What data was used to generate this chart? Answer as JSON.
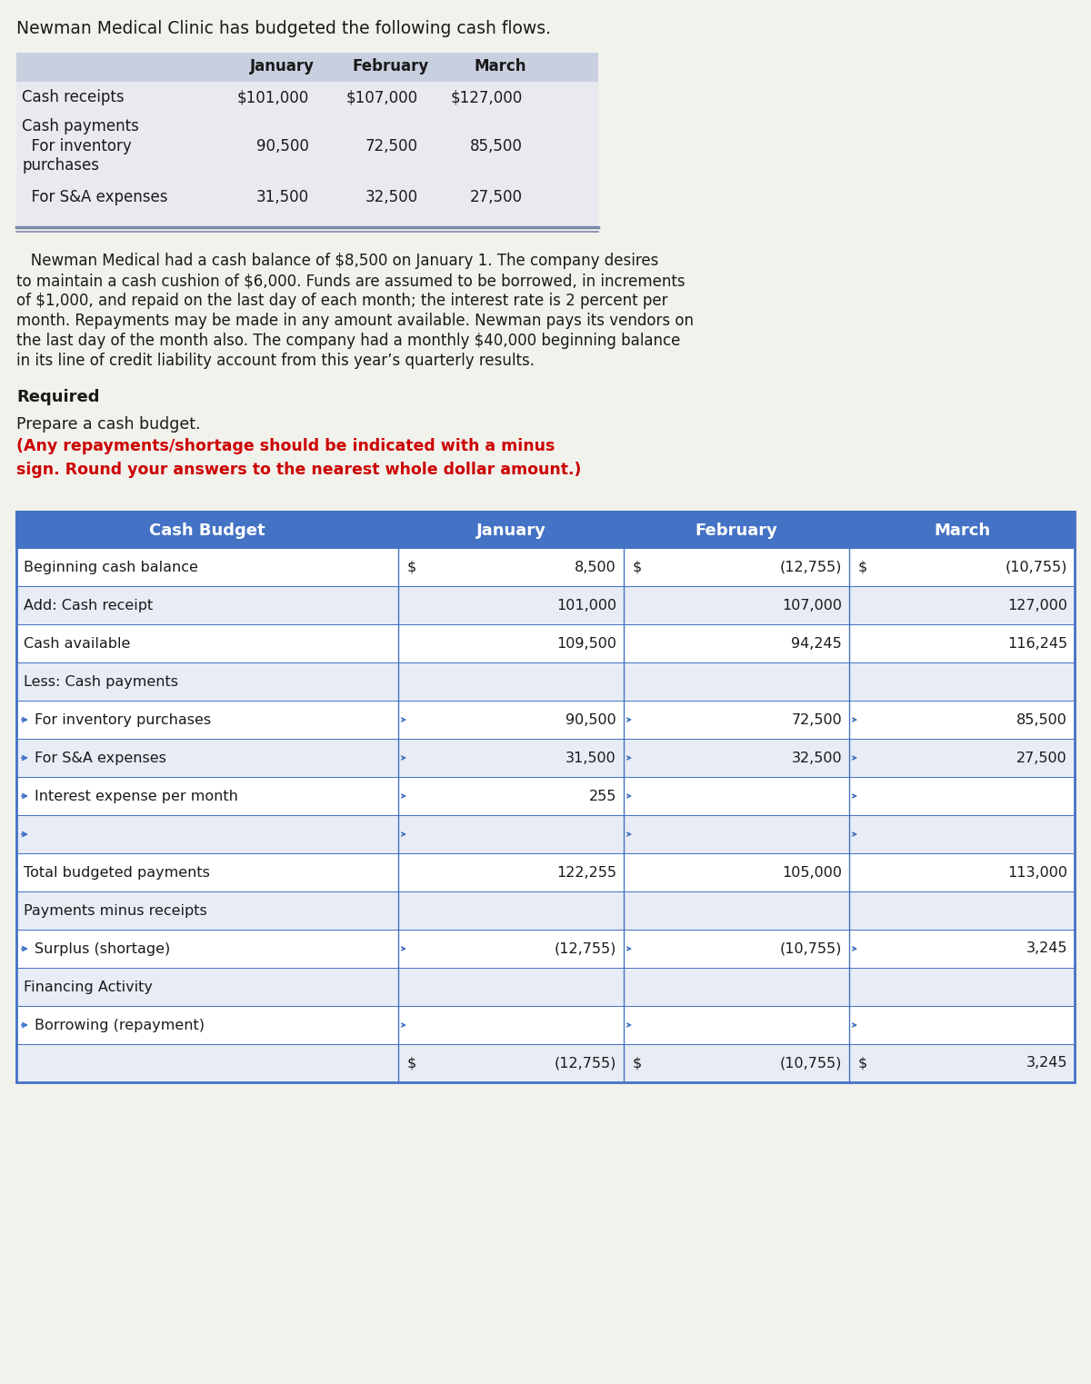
{
  "title_text": "Newman Medical Clinic has budgeted the following cash flows.",
  "body_text": "   Newman Medical had a cash balance of $8,500 on January 1. The company desires\nto maintain a cash cushion of $6,000. Funds are assumed to be borrowed, in increments\nof $1,000, and repaid on the last day of each month; the interest rate is 2 percent per\nmonth. Repayments may be made in any amount available. Newman pays its vendors on\nthe last day of the month also. The company had a monthly $40,000 beginning balance\nin its line of credit liability account from this year’s quarterly results.",
  "required_text": "Required",
  "prepare_normal": "Prepare a cash budget. ",
  "prepare_red_line1": "(Any repayments/shortage should be indicated with a minus",
  "prepare_red_line2": "sign. Round your answers to the nearest whole dollar amount.)",
  "intro_table": {
    "header_bg": "#C8D0E0",
    "body_bg": "#E8EAF0",
    "months": [
      "January",
      "February",
      "March"
    ],
    "rows": [
      {
        "label": "Cash receipts",
        "indent": 0,
        "vals": [
          "$101,000",
          "$107,000",
          "$127,000"
        ]
      },
      {
        "label": "Cash payments",
        "indent": 0,
        "vals": [
          "",
          "",
          ""
        ]
      },
      {
        "label": "  For inventory\npurchases",
        "indent": 1,
        "vals": [
          "90,500",
          "72,500",
          "85,500"
        ]
      },
      {
        "label": "  For S&A expenses",
        "indent": 1,
        "vals": [
          "31,500",
          "32,500",
          "27,500"
        ]
      }
    ]
  },
  "cash_budget": {
    "header_bg": "#4472C4",
    "header_fg": "#FFFFFF",
    "border_color": "#4472C4",
    "alt_row_bg": "#E8ECF5",
    "white_row_bg": "#FFFFFF",
    "headers": [
      "Cash Budget",
      "January",
      "February",
      "March"
    ],
    "rows": [
      {
        "label": "Beginning cash balance",
        "indent": 0,
        "jan": "8,500",
        "feb": "(12,755)",
        "mar": "(10,755)",
        "dollar": true
      },
      {
        "label": "Add: Cash receipt",
        "indent": 0,
        "jan": "101,000",
        "feb": "107,000",
        "mar": "127,000",
        "dollar": false
      },
      {
        "label": "Cash available",
        "indent": 0,
        "jan": "109,500",
        "feb": "94,245",
        "mar": "116,245",
        "dollar": false
      },
      {
        "label": "Less: Cash payments",
        "indent": 0,
        "jan": "",
        "feb": "",
        "mar": "",
        "dollar": false
      },
      {
        "label": "For inventory purchases",
        "indent": 1,
        "jan": "90,500",
        "feb": "72,500",
        "mar": "85,500",
        "dollar": false
      },
      {
        "label": "For S&A expenses",
        "indent": 1,
        "jan": "31,500",
        "feb": "32,500",
        "mar": "27,500",
        "dollar": false
      },
      {
        "label": "Interest expense per month",
        "indent": 1,
        "jan": "255",
        "feb": "",
        "mar": "",
        "dollar": false
      },
      {
        "label": "",
        "indent": 1,
        "jan": "",
        "feb": "",
        "mar": "",
        "dollar": false
      },
      {
        "label": "Total budgeted payments",
        "indent": 0,
        "jan": "122,255",
        "feb": "105,000",
        "mar": "113,000",
        "dollar": false
      },
      {
        "label": "Payments minus receipts",
        "indent": 0,
        "jan": "",
        "feb": "",
        "mar": "",
        "dollar": false
      },
      {
        "label": "Surplus (shortage)",
        "indent": 1,
        "jan": "(12,755)",
        "feb": "(10,755)",
        "mar": "3,245",
        "dollar": false
      },
      {
        "label": "Financing Activity",
        "indent": 0,
        "jan": "",
        "feb": "",
        "mar": "",
        "dollar": false
      },
      {
        "label": "Borrowing (repayment)",
        "indent": 1,
        "jan": "",
        "feb": "",
        "mar": "",
        "dollar": false
      },
      {
        "label": "",
        "indent": 0,
        "jan": "(12,755)",
        "feb": "(10,755)",
        "mar": "3,245",
        "dollar": true
      }
    ]
  },
  "bg_color": "#F2F2EC"
}
